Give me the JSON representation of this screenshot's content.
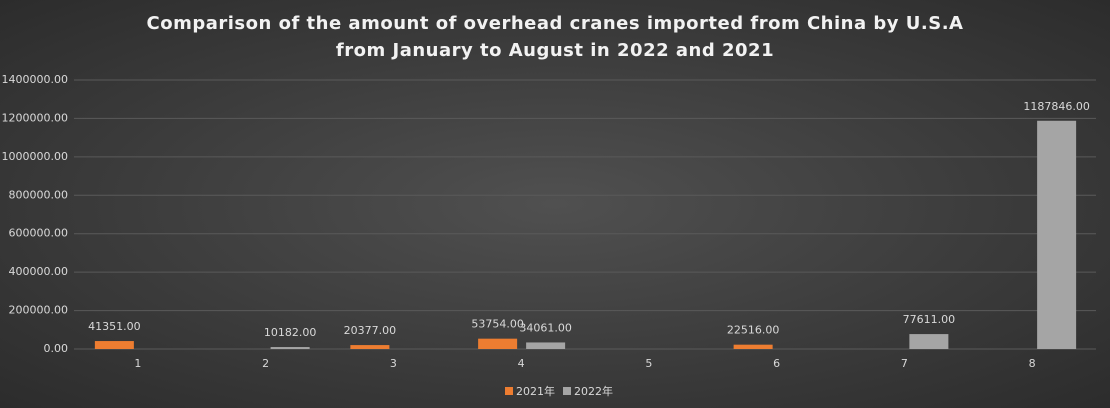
{
  "chart_data": {
    "type": "bar",
    "title": "Comparison of the amount of overhead cranes imported from China by U.S.A from January to August in 2022 and 2021",
    "categories": [
      "1",
      "2",
      "3",
      "4",
      "5",
      "6",
      "7",
      "8"
    ],
    "series": [
      {
        "name": "2021年",
        "color": "#ed7d31",
        "values": [
          41351,
          null,
          20377,
          53754,
          null,
          22516,
          null,
          null
        ],
        "value_labels": [
          "41351.00",
          null,
          "20377.00",
          "53754.00",
          null,
          "22516.00",
          null,
          null
        ]
      },
      {
        "name": "2022年",
        "color": "#a5a5a5",
        "values": [
          null,
          10182,
          null,
          34061,
          null,
          null,
          77611,
          1187846
        ],
        "value_labels": [
          null,
          "10182.00",
          null,
          "34061.00",
          null,
          null,
          "77611.00",
          "1187846.00"
        ]
      }
    ],
    "ylim": [
      0,
      1400000
    ],
    "yticks": [
      {
        "value": 0,
        "label": "0.00"
      },
      {
        "value": 200000,
        "label": "200000.00"
      },
      {
        "value": 400000,
        "label": "400000.00"
      },
      {
        "value": 600000,
        "label": "600000.00"
      },
      {
        "value": 800000,
        "label": "800000.00"
      },
      {
        "value": 1000000,
        "label": "1000000.00"
      },
      {
        "value": 1200000,
        "label": "1200000.00"
      },
      {
        "value": 1400000,
        "label": "1400000.00"
      }
    ],
    "grid": true,
    "legend": "bottom"
  }
}
